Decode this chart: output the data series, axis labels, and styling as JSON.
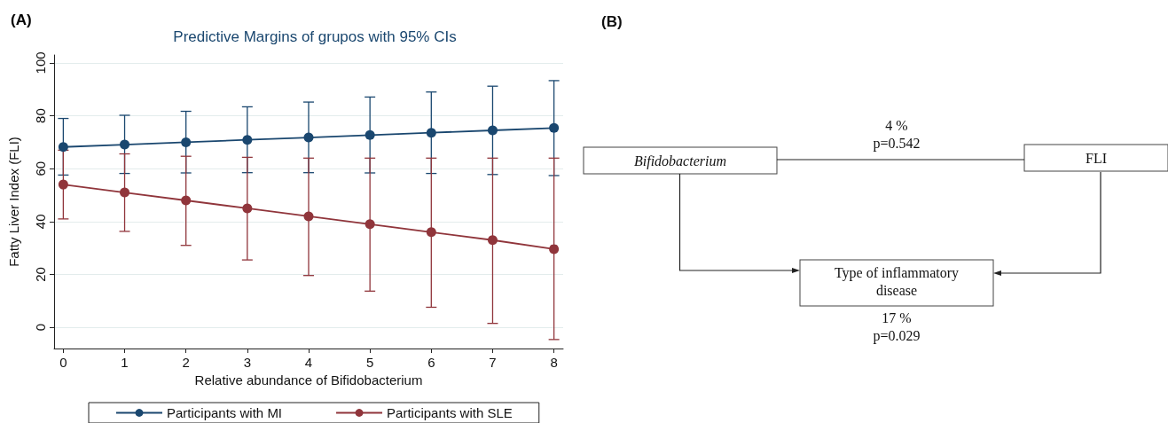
{
  "chart_data": [
    {
      "type": "line",
      "title": "Predictive Margins of grupos with 95% CIs",
      "xlabel": "Relative abundance of Bifidobacterium",
      "ylabel": "Fatty Liver Index (FLI)",
      "annotations": [
        "(A)"
      ],
      "x": [
        0,
        1,
        2,
        3,
        4,
        5,
        6,
        7,
        8
      ],
      "series": [
        {
          "name": "Participants with MI",
          "color": "#1a476f",
          "values": [
            68.2,
            69.1,
            70.0,
            70.9,
            71.8,
            72.7,
            73.6,
            74.5,
            75.4
          ],
          "errors": [
            [
              57.6,
              79
            ],
            [
              58.2,
              80.2
            ],
            [
              58.4,
              81.7
            ],
            [
              58.5,
              83.4
            ],
            [
              58.5,
              85.2
            ],
            [
              58.4,
              87.1
            ],
            [
              58.2,
              89
            ],
            [
              57.8,
              91.2
            ],
            [
              57.4,
              93.3
            ]
          ]
        },
        {
          "name": "Participants with SLE",
          "color": "#90353b",
          "values": [
            54,
            51,
            48,
            45,
            42,
            39,
            36,
            33,
            29.6
          ],
          "errors": [
            [
              41,
              67
            ],
            [
              36.3,
              65.6
            ],
            [
              31,
              64.7
            ],
            [
              25.5,
              64.3
            ],
            [
              19.6,
              64
            ],
            [
              13.7,
              64
            ],
            [
              7.6,
              64
            ],
            [
              1.5,
              64
            ],
            [
              -4.6,
              64
            ]
          ]
        }
      ],
      "xlim": [
        -0.15,
        8.15
      ],
      "xticks": [
        0,
        1,
        2,
        3,
        4,
        5,
        6,
        7,
        8
      ],
      "ylim": [
        -8,
        103
      ],
      "yticks": [
        0,
        20,
        40,
        60,
        80,
        100
      ],
      "grid": "y",
      "legend": "bottom",
      "marker": "circle",
      "line_style": "solid"
    },
    {
      "type": "other",
      "annotations": [
        "(B)",
        "Bifidobacterium",
        "FLI",
        "Type of inflammatory disease",
        "4 %",
        "p=0.542",
        "17 %",
        "p=0.029"
      ]
    }
  ]
}
